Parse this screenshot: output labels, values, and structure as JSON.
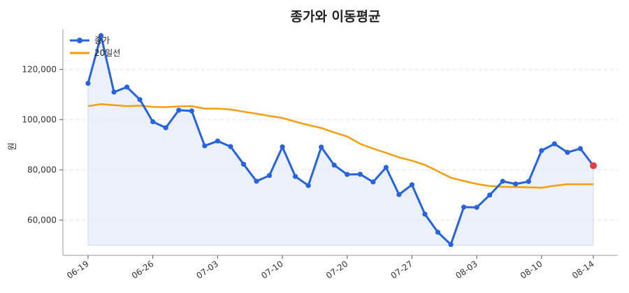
{
  "chart_data": {
    "type": "line",
    "title": "종가와 이동평균",
    "ylabel": "원",
    "xlabel": "",
    "ylim": [
      46000,
      136000
    ],
    "y_ticks": [
      60000,
      80000,
      100000,
      120000
    ],
    "y_tick_labels": [
      "60,000",
      "80,000",
      "100,000",
      "120,000"
    ],
    "x_start": "06-19",
    "x_ticks": [
      "06-19",
      "06-26",
      "07-03",
      "07-10",
      "07-20",
      "07-27",
      "08-03",
      "08-10",
      "08-14"
    ],
    "x_tick_index": [
      0,
      5,
      10,
      15,
      20,
      25,
      30,
      35,
      39
    ],
    "grid": true,
    "legend_position": "top-left",
    "colors": {
      "close": "#2563e0",
      "ma20": "#f59e0b",
      "fill": "#e6ecf9",
      "last_point": "#e53e3e",
      "grid": "#e3e3e3"
    },
    "series": [
      {
        "name": "종가",
        "values": [
          114500,
          133500,
          111000,
          113000,
          108000,
          99200,
          96800,
          103800,
          103500,
          89600,
          91500,
          89300,
          82300,
          75500,
          77800,
          89200,
          77400,
          73800,
          89100,
          81900,
          78200,
          78300,
          75200,
          81000,
          70200,
          74100,
          62400,
          55200,
          50300,
          65200,
          65100,
          70000,
          75500,
          74400,
          75400,
          87700,
          90400,
          87000,
          88500,
          81700
        ]
      },
      {
        "name": "20일선",
        "values": [
          105400,
          106200,
          105800,
          105400,
          105600,
          105100,
          105000,
          105300,
          105400,
          104400,
          104400,
          104100,
          103200,
          102400,
          101500,
          100700,
          99200,
          97900,
          96700,
          94900,
          93300,
          90400,
          88500,
          86800,
          85000,
          83700,
          82000,
          79500,
          76900,
          75600,
          74400,
          73600,
          73300,
          73200,
          73100,
          72900,
          73700,
          74300,
          74300,
          74300
        ]
      }
    ]
  }
}
